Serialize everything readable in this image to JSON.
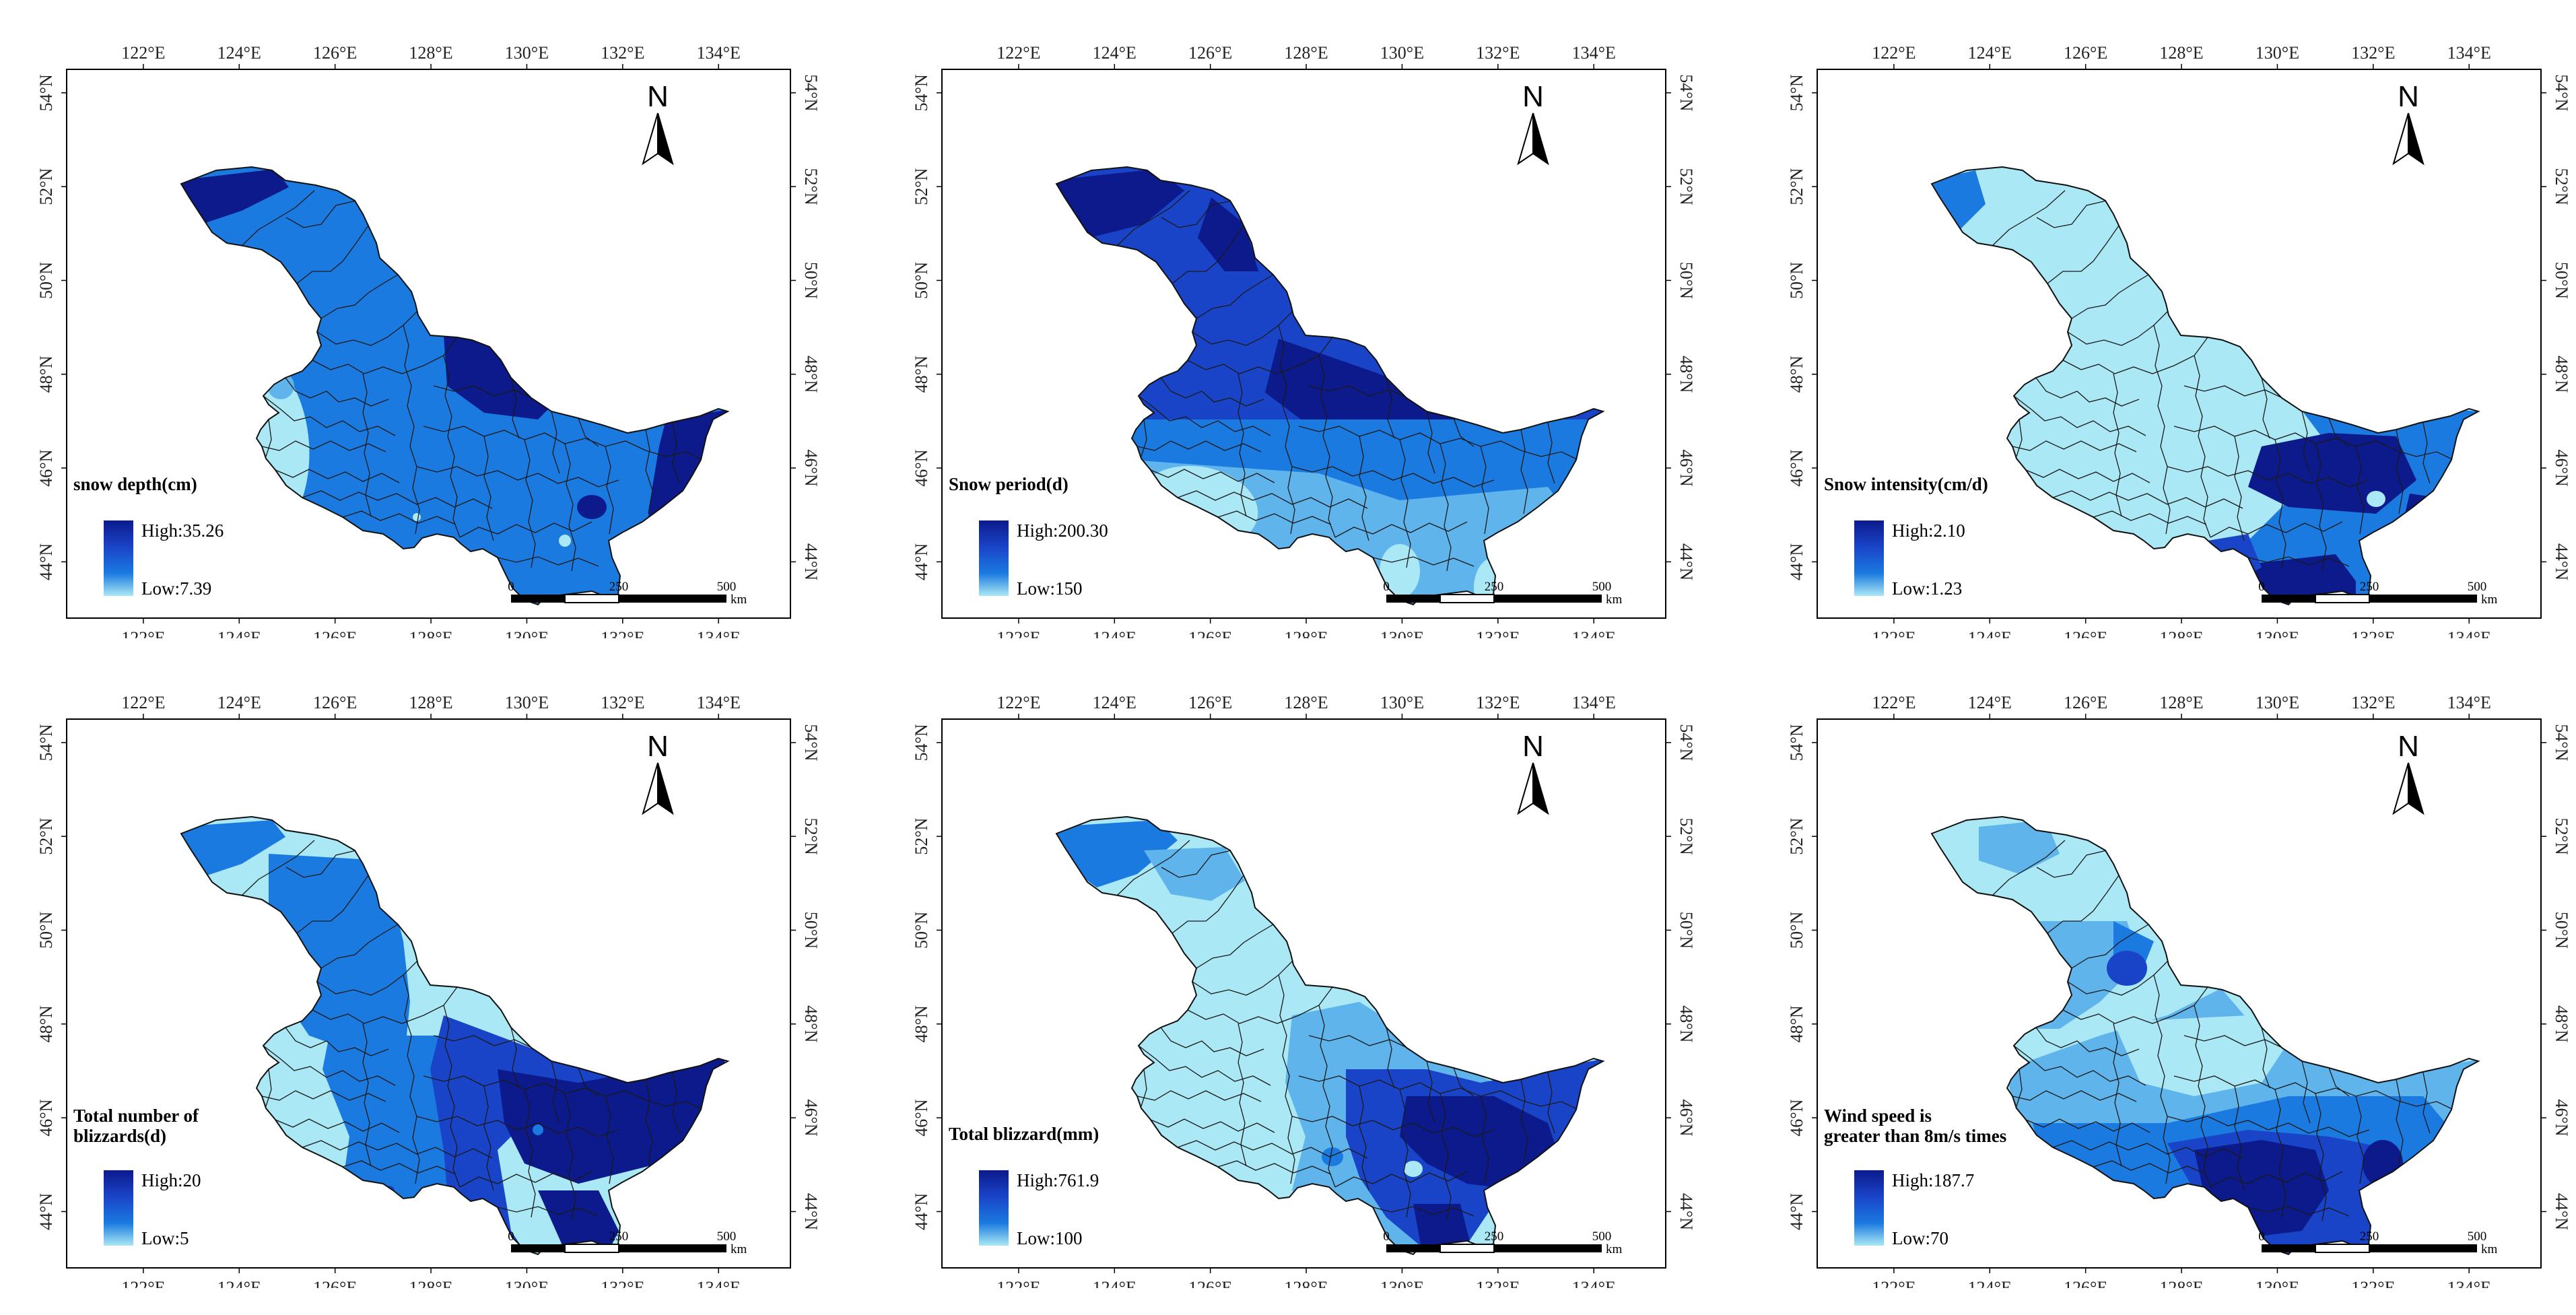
{
  "lon_ticks": [
    "122°E",
    "124°E",
    "126°E",
    "128°E",
    "130°E",
    "132°E",
    "134°E"
  ],
  "lat_ticks": [
    "44°N",
    "46°N",
    "48°N",
    "50°N",
    "52°N",
    "54°N"
  ],
  "north_label": "N",
  "scale_labels": [
    "0",
    "250",
    "500"
  ],
  "scale_unit": "km",
  "colors": {
    "dark": "#0c1a8c",
    "mid_dark": "#1a44c8",
    "mid": "#1b7ae0",
    "light_mid": "#5fb4ec",
    "light": "#a9e8f4"
  },
  "panels": [
    {
      "id": "snow-depth",
      "title_lines": [
        "snow depth(cm)"
      ],
      "high": "High:35.26",
      "low": "Low:7.39",
      "pattern": "depth"
    },
    {
      "id": "snow-period",
      "title_lines": [
        "Snow period(d)"
      ],
      "high": "High:200.30",
      "low": "Low:150",
      "pattern": "period"
    },
    {
      "id": "snow-intensity",
      "title_lines": [
        "Snow intensity(cm/d)"
      ],
      "high": "High:2.10",
      "low": "Low:1.23",
      "pattern": "intensity"
    },
    {
      "id": "blizzard-days",
      "title_lines": [
        "Total number of",
        "blizzards(d)"
      ],
      "high": "High:20",
      "low": "Low:5",
      "pattern": "blizzards"
    },
    {
      "id": "blizzard-total",
      "title_lines": [
        "Total blizzard(mm)"
      ],
      "high": "High:761.9",
      "low": "Low:100",
      "pattern": "total"
    },
    {
      "id": "wind-speed",
      "title_lines": [
        "Wind speed is",
        "greater than 8m/s times"
      ],
      "high": "High:187.7",
      "low": "Low:70",
      "pattern": "wind"
    }
  ]
}
